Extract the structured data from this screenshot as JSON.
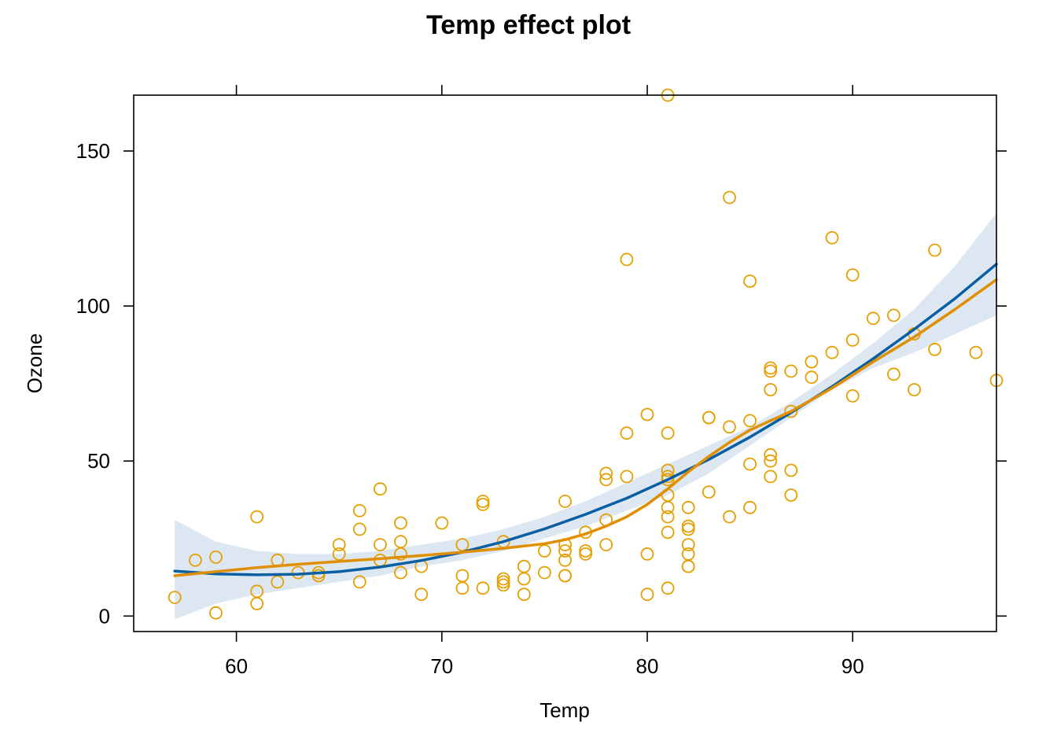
{
  "chart_data": {
    "type": "scatter",
    "title": "Temp effect plot",
    "xlabel": "Temp",
    "ylabel": "Ozone",
    "xlim": [
      55,
      97
    ],
    "ylim": [
      -5,
      168
    ],
    "x_ticks": [
      60,
      70,
      80,
      90
    ],
    "y_ticks": [
      0,
      50,
      100,
      150
    ],
    "grid": false,
    "legend": "none",
    "colors": {
      "points": "#E69F00",
      "smooth": "#E08F00",
      "fit": "#0A5FA3",
      "band": "#DCE7F1",
      "axis": "#000000"
    },
    "confidence_band": {
      "x": [
        57,
        59,
        61,
        63,
        65,
        67,
        69,
        71,
        73,
        75,
        77,
        79,
        81,
        83,
        85,
        87,
        89,
        91,
        93,
        95,
        97
      ],
      "lower": [
        -1,
        4,
        7,
        9,
        11,
        13,
        16,
        18,
        21,
        25,
        29,
        34,
        39,
        46,
        55,
        64,
        73,
        80,
        85,
        91,
        97
      ],
      "upper": [
        31,
        24,
        21,
        20,
        20,
        21,
        23,
        25,
        28,
        32,
        37,
        43,
        49,
        55,
        61,
        69,
        78,
        88,
        99,
        113,
        130
      ]
    },
    "series": [
      {
        "type": "scatter",
        "points": [
          [
            57,
            6
          ],
          [
            58,
            18
          ],
          [
            59,
            19
          ],
          [
            59,
            1
          ],
          [
            61,
            32
          ],
          [
            61,
            8
          ],
          [
            61,
            4
          ],
          [
            62,
            18
          ],
          [
            62,
            11
          ],
          [
            63,
            14
          ],
          [
            64,
            14
          ],
          [
            64,
            13
          ],
          [
            65,
            23
          ],
          [
            65,
            20
          ],
          [
            66,
            34
          ],
          [
            66,
            28
          ],
          [
            66,
            11
          ],
          [
            67,
            41
          ],
          [
            67,
            23
          ],
          [
            67,
            18
          ],
          [
            68,
            30
          ],
          [
            68,
            24
          ],
          [
            68,
            20
          ],
          [
            68,
            14
          ],
          [
            69,
            16
          ],
          [
            69,
            7
          ],
          [
            70,
            30
          ],
          [
            71,
            23
          ],
          [
            71,
            13
          ],
          [
            71,
            9
          ],
          [
            72,
            37
          ],
          [
            72,
            36
          ],
          [
            72,
            9
          ],
          [
            73,
            24
          ],
          [
            73,
            12
          ],
          [
            73,
            11
          ],
          [
            73,
            10
          ],
          [
            74,
            16
          ],
          [
            74,
            12
          ],
          [
            74,
            7
          ],
          [
            75,
            21
          ],
          [
            75,
            14
          ],
          [
            76,
            37
          ],
          [
            76,
            23
          ],
          [
            76,
            21
          ],
          [
            76,
            18
          ],
          [
            76,
            13
          ],
          [
            76,
            13
          ],
          [
            77,
            27
          ],
          [
            77,
            21
          ],
          [
            77,
            20
          ],
          [
            78,
            46
          ],
          [
            78,
            44
          ],
          [
            78,
            31
          ],
          [
            78,
            23
          ],
          [
            79,
            115
          ],
          [
            79,
            59
          ],
          [
            79,
            45
          ],
          [
            80,
            65
          ],
          [
            80,
            20
          ],
          [
            80,
            7
          ],
          [
            81,
            168
          ],
          [
            81,
            59
          ],
          [
            81,
            47
          ],
          [
            81,
            45
          ],
          [
            81,
            44
          ],
          [
            81,
            39
          ],
          [
            81,
            35
          ],
          [
            81,
            32
          ],
          [
            81,
            27
          ],
          [
            81,
            9
          ],
          [
            82,
            35
          ],
          [
            82,
            29
          ],
          [
            82,
            28
          ],
          [
            82,
            23
          ],
          [
            82,
            20
          ],
          [
            82,
            16
          ],
          [
            82,
            16
          ],
          [
            83,
            64
          ],
          [
            83,
            64
          ],
          [
            83,
            40
          ],
          [
            84,
            135
          ],
          [
            84,
            61
          ],
          [
            84,
            32
          ],
          [
            85,
            108
          ],
          [
            85,
            63
          ],
          [
            85,
            49
          ],
          [
            85,
            35
          ],
          [
            86,
            80
          ],
          [
            86,
            79
          ],
          [
            86,
            73
          ],
          [
            86,
            52
          ],
          [
            86,
            50
          ],
          [
            86,
            45
          ],
          [
            87,
            79
          ],
          [
            87,
            66
          ],
          [
            87,
            47
          ],
          [
            87,
            39
          ],
          [
            88,
            82
          ],
          [
            88,
            77
          ],
          [
            89,
            122
          ],
          [
            89,
            85
          ],
          [
            90,
            110
          ],
          [
            90,
            89
          ],
          [
            90,
            71
          ],
          [
            91,
            96
          ],
          [
            92,
            97
          ],
          [
            92,
            78
          ],
          [
            93,
            91
          ],
          [
            93,
            73
          ],
          [
            94,
            118
          ],
          [
            94,
            86
          ],
          [
            96,
            85
          ],
          [
            97,
            76
          ]
        ]
      },
      {
        "type": "line",
        "points": [
          [
            57,
            14.5
          ],
          [
            59,
            13.6
          ],
          [
            61,
            13.3
          ],
          [
            63,
            13.5
          ],
          [
            65,
            14.3
          ],
          [
            67,
            15.8
          ],
          [
            69,
            17.9
          ],
          [
            71,
            20.6
          ],
          [
            73,
            24
          ],
          [
            75,
            28.1
          ],
          [
            77,
            32.8
          ],
          [
            79,
            38
          ],
          [
            81,
            44
          ],
          [
            83,
            50.5
          ],
          [
            85,
            57.7
          ],
          [
            87,
            65.6
          ],
          [
            89,
            74
          ],
          [
            91,
            83
          ],
          [
            93,
            92.5
          ],
          [
            95,
            102.5
          ],
          [
            97,
            113.5
          ]
        ]
      },
      {
        "type": "line",
        "points": [
          [
            57,
            13
          ],
          [
            59,
            14.3
          ],
          [
            61,
            15.6
          ],
          [
            63,
            16.7
          ],
          [
            65,
            17.6
          ],
          [
            67,
            18.5
          ],
          [
            69,
            19.5
          ],
          [
            71,
            20.6
          ],
          [
            73,
            21.8
          ],
          [
            75,
            23.3
          ],
          [
            76,
            24.6
          ],
          [
            77,
            26.5
          ],
          [
            78,
            29
          ],
          [
            79,
            32
          ],
          [
            80,
            36
          ],
          [
            81,
            41
          ],
          [
            82,
            46.5
          ],
          [
            83,
            51.5
          ],
          [
            84,
            56
          ],
          [
            85,
            60
          ],
          [
            86,
            63
          ],
          [
            87,
            66
          ],
          [
            89,
            73.5
          ],
          [
            91,
            82
          ],
          [
            93,
            90
          ],
          [
            95,
            99
          ],
          [
            97,
            108.5
          ]
        ]
      }
    ]
  }
}
